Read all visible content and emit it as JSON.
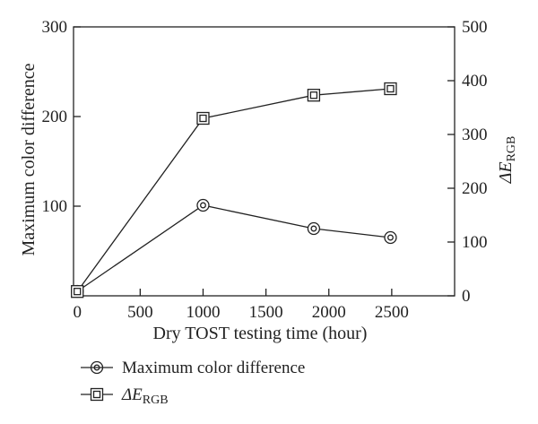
{
  "chart_data": {
    "type": "line",
    "x": [
      0,
      1000,
      1880,
      2490
    ],
    "xlabel": "Dry TOST testing time (hour)",
    "xlim": [
      -30,
      3000
    ],
    "xticks": [
      0,
      500,
      1000,
      1500,
      2000,
      2500
    ],
    "ylabel_left": "Maximum color difference",
    "ylim_left": [
      0,
      300
    ],
    "yticks_left": [
      100,
      200,
      300
    ],
    "ylabel_right_main": "ΔE",
    "ylabel_right_sub": "RGB",
    "ylim_right": [
      0,
      500
    ],
    "yticks_right": [
      0,
      100,
      200,
      300,
      400,
      500
    ],
    "series": [
      {
        "name": "Maximum color difference",
        "axis": "left",
        "marker": "circle",
        "x": [
          0,
          1000,
          1880,
          2490
        ],
        "values": [
          5,
          101,
          75,
          65
        ]
      },
      {
        "name_main": "ΔE",
        "name_sub": "RGB",
        "axis": "right",
        "marker": "square",
        "x": [
          0,
          1000,
          1880,
          2490
        ],
        "values": [
          8,
          330,
          373,
          385
        ]
      }
    ],
    "grid": false,
    "legend_position": "bottom-left",
    "color": "#222222"
  }
}
